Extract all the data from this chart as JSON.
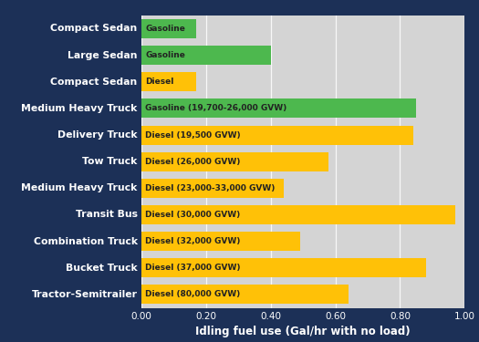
{
  "categories": [
    "Compact Sedan",
    "Large Sedan",
    "Compact Sedan",
    "Medium Heavy Truck",
    "Delivery Truck",
    "Tow Truck",
    "Medium Heavy Truck",
    "Transit Bus",
    "Combination Truck",
    "Bucket Truck",
    "Tractor-Semitrailer"
  ],
  "bar_labels": [
    "Gasoline",
    "Gasoline",
    "Diesel",
    "Gasoline (19,700-26,000 GVW)",
    "Diesel (19,500 GVW)",
    "Diesel (26,000 GVW)",
    "Diesel (23,000-33,000 GVW)",
    "Diesel (30,000 GVW)",
    "Diesel (32,000 GVW)",
    "Diesel (37,000 GVW)",
    "Diesel (80,000 GVW)"
  ],
  "values": [
    0.17,
    0.4,
    0.17,
    0.85,
    0.84,
    0.58,
    0.44,
    0.97,
    0.49,
    0.88,
    0.64
  ],
  "bar_colors": [
    "#4db84e",
    "#4db84e",
    "#ffc107",
    "#4db84e",
    "#ffc107",
    "#ffc107",
    "#ffc107",
    "#ffc107",
    "#ffc107",
    "#ffc107",
    "#ffc107"
  ],
  "xlabel": "Idling fuel use (Gal/hr with no load)",
  "xlim": [
    0,
    1.0
  ],
  "xticks": [
    0.0,
    0.2,
    0.4,
    0.6,
    0.8,
    1.0
  ],
  "background_color": "#1c3057",
  "plot_bg_color": "#d4d4d4",
  "bar_label_color": "#222222",
  "category_label_color": "#ffffff",
  "xlabel_color": "#ffffff",
  "tick_color": "#ffffff",
  "bar_label_fontsize": 6.5,
  "category_fontsize": 7.8,
  "xlabel_fontsize": 8.5,
  "tick_fontsize": 7.5
}
